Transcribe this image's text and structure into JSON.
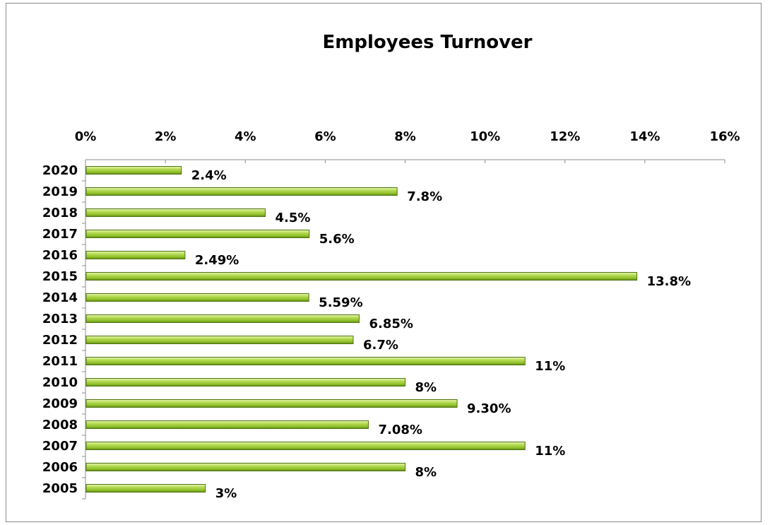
{
  "chart_data": {
    "type": "bar",
    "orientation": "horizontal",
    "title": "Employees Turnover",
    "xlabel": "",
    "ylabel": "",
    "xlim": [
      0,
      16
    ],
    "x_ticks": [
      "0%",
      "2%",
      "4%",
      "6%",
      "8%",
      "10%",
      "12%",
      "14%",
      "16%"
    ],
    "x_axis_position": "top",
    "grid": false,
    "legend": "none",
    "categories": [
      "2020",
      "2019",
      "2018",
      "2017",
      "2016",
      "2015",
      "2014",
      "2013",
      "2012",
      "2011",
      "2010",
      "2009",
      "2008",
      "2007",
      "2006",
      "2005"
    ],
    "values": [
      2.4,
      7.8,
      4.5,
      5.6,
      2.49,
      13.8,
      5.59,
      6.85,
      6.7,
      11,
      8,
      9.3,
      7.08,
      11,
      8,
      3
    ],
    "data_labels": [
      "2.4%",
      "7.8%",
      "4.5%",
      "5.6%",
      "2.49%",
      "13.8%",
      "5.59%",
      "6.85%",
      "6.7%",
      "11%",
      "8%",
      "9.30%",
      "7.08%",
      "11%",
      "8%",
      "3%"
    ],
    "colors": {
      "bar_light": "#d8ef9a",
      "bar_mid": "#a6ce39",
      "bar_dark": "#5f8a12",
      "axis": "#8c8c8c"
    }
  }
}
